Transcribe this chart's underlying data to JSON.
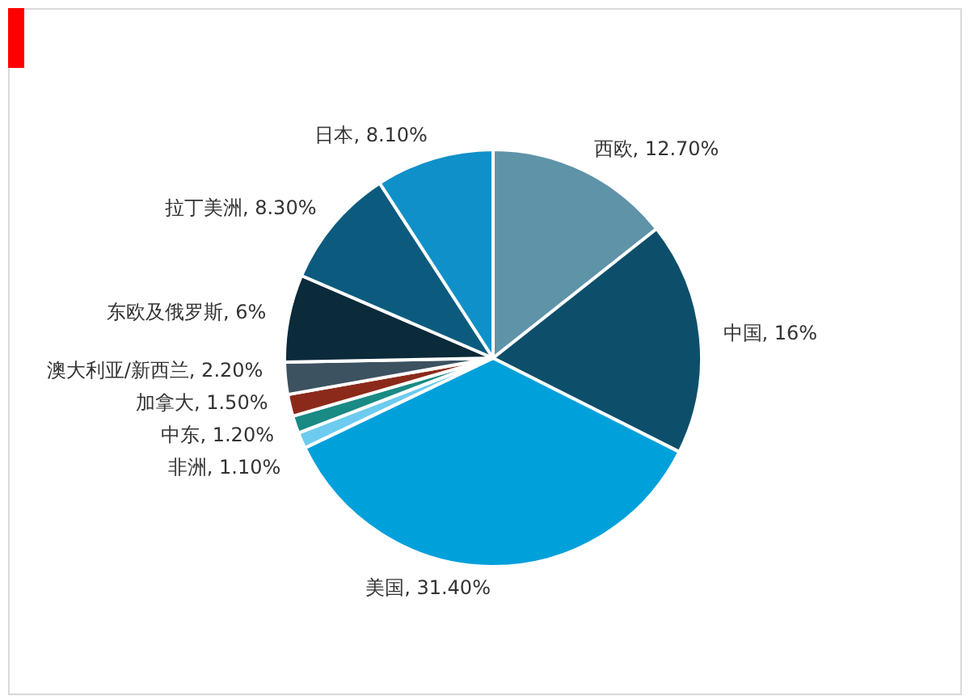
{
  "chart_data": {
    "type": "pie",
    "categories": [
      "西欧",
      "中国",
      "美国",
      "非洲",
      "中东",
      "加拿大",
      "澳大利亚/新西兰",
      "东欧及俄罗斯",
      "拉丁美洲",
      "日本"
    ],
    "values": [
      12.7,
      16,
      31.4,
      1.1,
      1.2,
      1.5,
      2.2,
      6,
      8.3,
      8.1
    ],
    "value_labels": [
      "12.70%",
      "16%",
      "31.40%",
      "1.10%",
      "1.20%",
      "1.50%",
      "2.20%",
      "6%",
      "8.30%",
      "8.10%"
    ],
    "colors": [
      "#5f93a8",
      "#0d4f6a",
      "#00a0db",
      "#6ccbef",
      "#1a8a84",
      "#8b2a1a",
      "#3c5261",
      "#0b2a3a",
      "#0c5b7e",
      "#1090c8"
    ],
    "legend": false
  }
}
